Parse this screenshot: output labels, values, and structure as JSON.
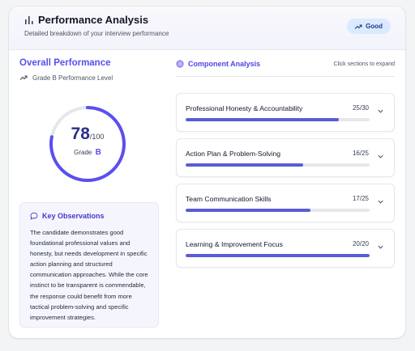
{
  "header": {
    "title": "Performance Analysis",
    "subtitle": "Detailed breakdown of your interview performance",
    "badge": "Good"
  },
  "overall": {
    "title": "Overall Performance",
    "grade_level": "Grade B Performance Level",
    "score": "78",
    "max": "/100",
    "grade_label": "Grade",
    "grade": "B",
    "fraction": 0.78
  },
  "observations": {
    "title": "Key Observations",
    "text": "The candidate demonstrates good foundational professional values and honesty, but needs development in specific action planning and structured communication approaches. While the core instinct to be transparent is commendable, the response could benefit from more tactical problem-solving and specific improvement strategies."
  },
  "components": {
    "title": "Component Analysis",
    "hint": "Click sections to expand",
    "items": [
      {
        "name": "Professional Honesty & Accountability",
        "score": "25/30",
        "fraction": 0.833
      },
      {
        "name": "Action Plan & Problem-Solving",
        "score": "16/25",
        "fraction": 0.64
      },
      {
        "name": "Team Communication Skills",
        "score": "17/25",
        "fraction": 0.68
      },
      {
        "name": "Learning & Improvement Focus",
        "score": "20/20",
        "fraction": 1.0
      }
    ]
  },
  "colors": {
    "accent": "#5b4ef0",
    "ring_track": "#e5e7eb",
    "bar_fill": "#5b5bd6"
  },
  "icons": {
    "header": "bar-chart-icon",
    "badge": "trending-up-icon",
    "grade": "trending-up-icon",
    "observations": "chat-bubble-icon",
    "components": "target-icon",
    "expand": "chevron-down-icon"
  }
}
